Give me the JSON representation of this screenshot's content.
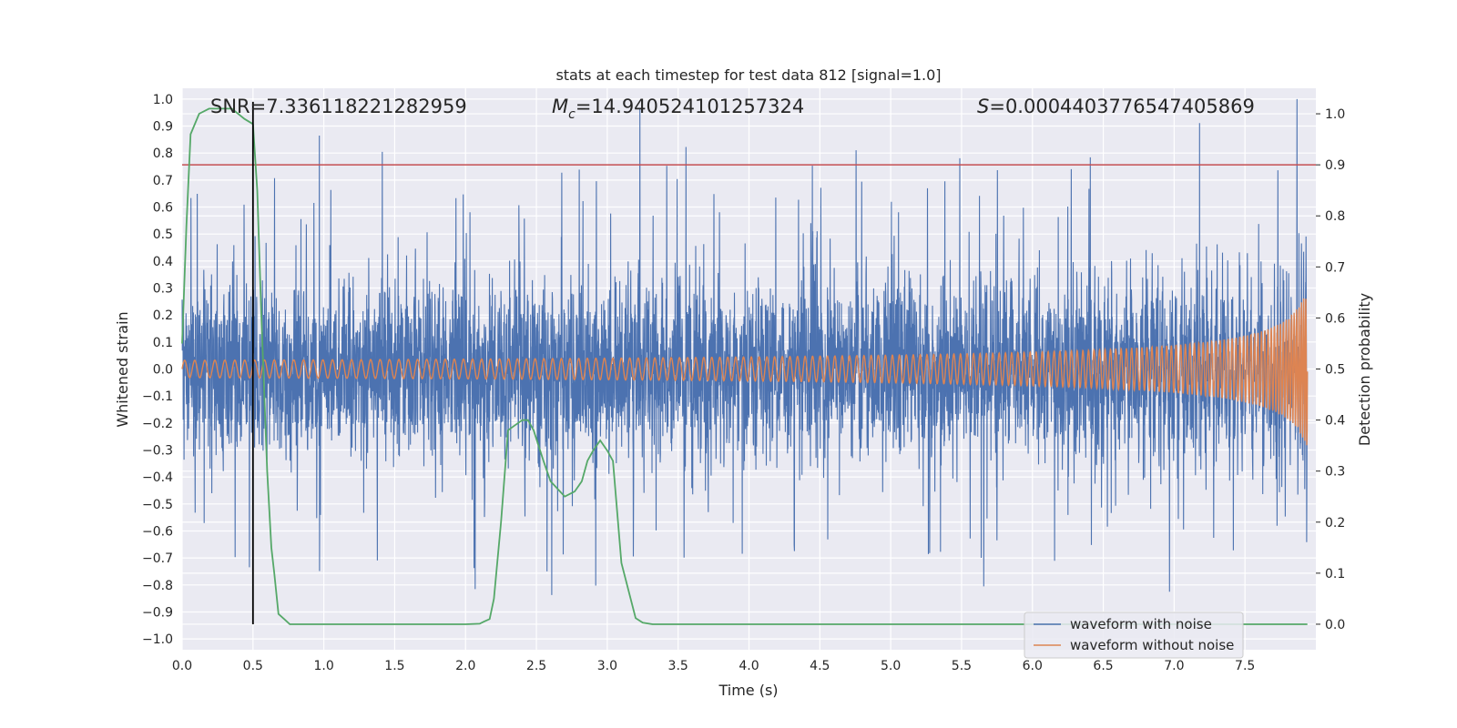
{
  "chart_data": {
    "type": "line",
    "title": "stats at each timestep for test data 812 [signal=1.0]",
    "xlabel": "Time (s)",
    "ylabel": "Whitened strain",
    "y2label": "Detection probability",
    "xlim": [
      0.0,
      8.0
    ],
    "ylim": [
      -1.04,
      1.04
    ],
    "y2lim": [
      -0.05,
      1.05
    ],
    "xticks": [
      "0.0",
      "0.5",
      "1.0",
      "1.5",
      "2.0",
      "2.5",
      "3.0",
      "3.5",
      "4.0",
      "4.5",
      "5.0",
      "5.5",
      "6.0",
      "6.5",
      "7.0",
      "7.5"
    ],
    "yticks": [
      "1.0",
      "0.9",
      "0.8",
      "0.7",
      "0.6",
      "0.5",
      "0.4",
      "0.3",
      "0.2",
      "0.1",
      "0.0",
      "−0.1",
      "−0.2",
      "−0.3",
      "−0.4",
      "−0.5",
      "−0.6",
      "−0.7",
      "−0.8",
      "−0.9",
      "−1.0"
    ],
    "y2ticks": [
      "1.0",
      "0.9",
      "0.8",
      "0.7",
      "0.6",
      "0.5",
      "0.4",
      "0.3",
      "0.2",
      "0.1",
      "0.0"
    ],
    "annotations": {
      "snr": "SNR=7.336118221282959",
      "mc_symbol": "M",
      "mc_sub": "c",
      "mc_value": "=14.940524101257324",
      "s_symbol": "S",
      "s_value": "=0.0004403776547405869"
    },
    "threshold": {
      "value": 0.9,
      "color": "#c44e52"
    },
    "marker_line": {
      "x": 0.5,
      "color": "#000000"
    },
    "grid": true,
    "legend_position": "lower-right",
    "series": [
      {
        "name": "waveform with noise",
        "color": "#4c72b0",
        "description_envelope": "noise band roughly ±0.35 core with spikes to ±0.6–1.0 at many timesteps, growing chirp toward end"
      },
      {
        "name": "waveform without noise",
        "color": "#dd8452",
        "chirp": {
          "t_merge": 8.0,
          "amp_start": 0.005,
          "amp_end": 0.45
        }
      },
      {
        "color": "#55a868",
        "x": [
          0.0,
          0.03,
          0.06,
          0.12,
          0.19,
          0.25,
          0.3,
          0.35,
          0.44,
          0.5,
          0.53,
          0.56,
          0.6,
          0.63,
          0.65,
          0.68,
          0.72,
          0.76,
          0.8,
          1.0,
          1.5,
          2.0,
          2.1,
          2.13,
          2.17,
          2.2,
          2.25,
          2.3,
          2.35,
          2.4,
          2.44,
          2.48,
          2.55,
          2.6,
          2.7,
          2.77,
          2.82,
          2.86,
          2.9,
          2.95,
          3.0,
          3.04,
          3.1,
          3.2,
          3.25,
          3.32,
          3.4,
          4.0,
          6.0,
          8.0
        ],
        "values": [
          0.55,
          0.78,
          0.96,
          1.0,
          1.01,
          1.01,
          1.01,
          1.01,
          0.99,
          0.98,
          0.85,
          0.6,
          0.3,
          0.15,
          0.1,
          0.02,
          0.01,
          0.0,
          0.0,
          0.0,
          0.0,
          0.0,
          0.001,
          0.005,
          0.01,
          0.05,
          0.2,
          0.38,
          0.39,
          0.4,
          0.4,
          0.38,
          0.32,
          0.28,
          0.25,
          0.26,
          0.28,
          0.32,
          0.34,
          0.36,
          0.34,
          0.32,
          0.12,
          0.012,
          0.003,
          0.0,
          0.0,
          0.0,
          0.0,
          0.0
        ]
      }
    ],
    "legend": [
      "waveform with noise",
      "waveform without noise"
    ]
  },
  "colors": {
    "plot_bg": "#eaeaf2",
    "grid": "#ffffff",
    "noise": "#4c72b0",
    "clean": "#dd8452",
    "prob": "#55a868"
  }
}
